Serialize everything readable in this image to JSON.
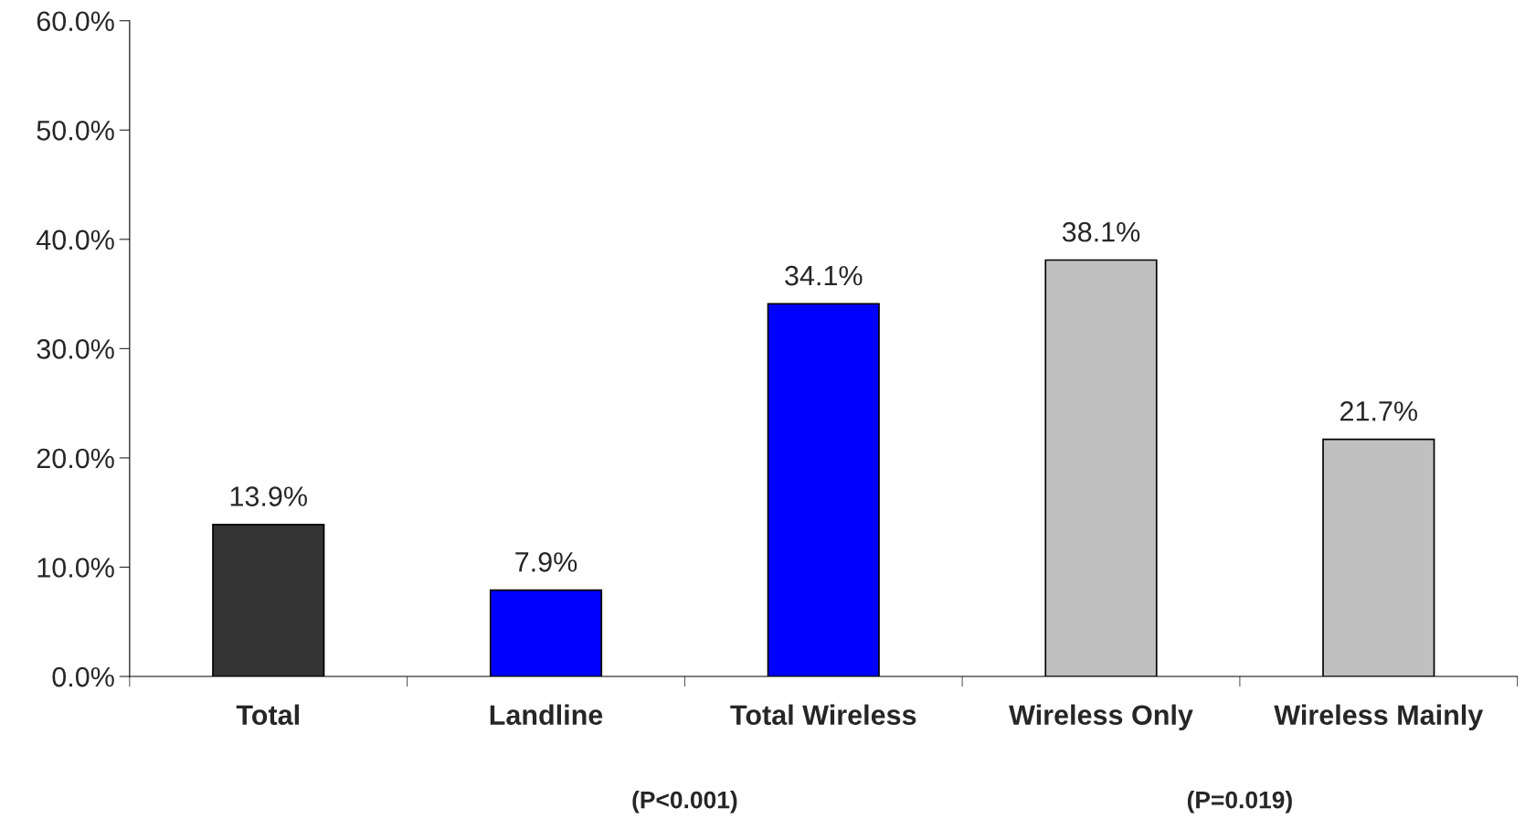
{
  "chart_data": {
    "type": "bar",
    "categories": [
      "Total",
      "Landline",
      "Total Wireless",
      "Wireless Only",
      "Wireless Mainly"
    ],
    "values": [
      13.9,
      7.9,
      34.1,
      38.1,
      21.7
    ],
    "colors": [
      "#333333",
      "#0000ff",
      "#0000ff",
      "#c0c0c0",
      "#c0c0c0"
    ],
    "value_labels": [
      "13.9%",
      "7.9%",
      "34.1%",
      "38.1%",
      "21.7%"
    ],
    "ylim": [
      0,
      60
    ],
    "yticks": [
      {
        "value": 0,
        "label": "0.0%"
      },
      {
        "value": 10,
        "label": "10.0%"
      },
      {
        "value": 20,
        "label": "20.0%"
      },
      {
        "value": 30,
        "label": "30.0%"
      },
      {
        "value": 40,
        "label": "40.0%"
      },
      {
        "value": 50,
        "label": "50.0%"
      },
      {
        "value": 60,
        "label": "60.0%"
      }
    ],
    "annotations": [
      "(P<0.001)",
      "(P=0.019)"
    ],
    "grid": false,
    "legend": false
  }
}
